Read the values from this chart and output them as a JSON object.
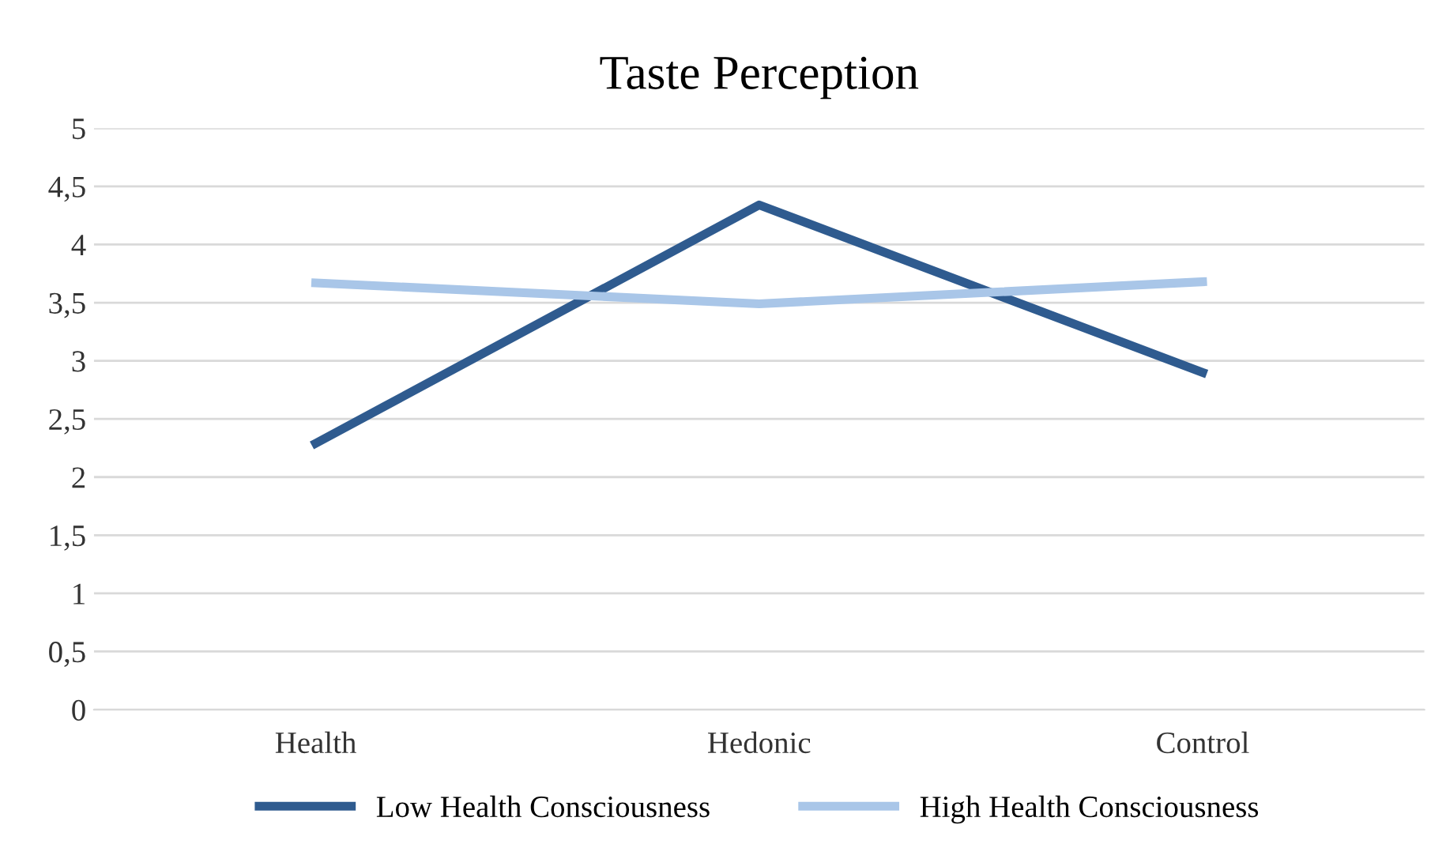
{
  "chart_data": {
    "type": "line",
    "title": "Taste Perception",
    "categories": [
      "Health",
      "Hedonic",
      "Control"
    ],
    "series": [
      {
        "name": "Low Health Consciousness",
        "color": "#2f5b8f",
        "values": [
          2.29,
          4.34,
          2.9
        ]
      },
      {
        "name": "High Health Consciousness",
        "color": "#a9c6e8",
        "values": [
          3.67,
          3.49,
          3.68
        ]
      }
    ],
    "ylim": [
      0,
      5
    ],
    "yticks": [
      0,
      {
        "value": 0.5,
        "label": "0,5"
      },
      1,
      {
        "value": 1.5,
        "label": "1,5"
      },
      2,
      {
        "value": 2.5,
        "label": "2,5"
      },
      3,
      {
        "value": 3.5,
        "label": "3,5"
      },
      4,
      {
        "value": 4.5,
        "label": "4,5"
      },
      5
    ],
    "grid": "y",
    "legend": "bottom",
    "marker": "none",
    "line_style": "solid"
  }
}
